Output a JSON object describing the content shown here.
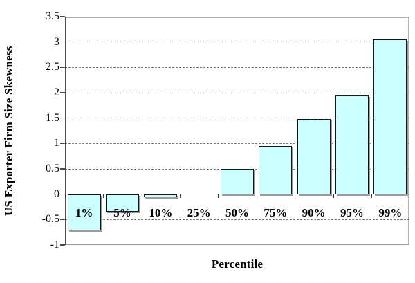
{
  "chart_data": {
    "type": "bar",
    "title": "",
    "categories": [
      "1%",
      "5%",
      "10%",
      "25%",
      "50%",
      "75%",
      "90%",
      "95%",
      "99%"
    ],
    "values": [
      -0.72,
      -0.35,
      -0.06,
      0,
      0.5,
      0.95,
      1.48,
      1.95,
      3.05
    ],
    "xlabel": "Percentile",
    "ylabel": "US Exporter Firm Size Skewness",
    "ylim": [
      -1,
      3.5
    ],
    "ytick_step": 0.5,
    "yticks": [
      "3.5",
      "3",
      "2.5",
      "2",
      "1.5",
      "1",
      "0.5",
      "0",
      "-0.5",
      "-1"
    ],
    "grid": "horizontal-dashed",
    "legend_position": "none",
    "bar_fill_color": "#CCFFFF",
    "bar_border_color": "#141414",
    "bar_shadow_color": "#9B9B9B",
    "axis_color": "#4D4D4D",
    "background_color": "#FFFFFF"
  }
}
